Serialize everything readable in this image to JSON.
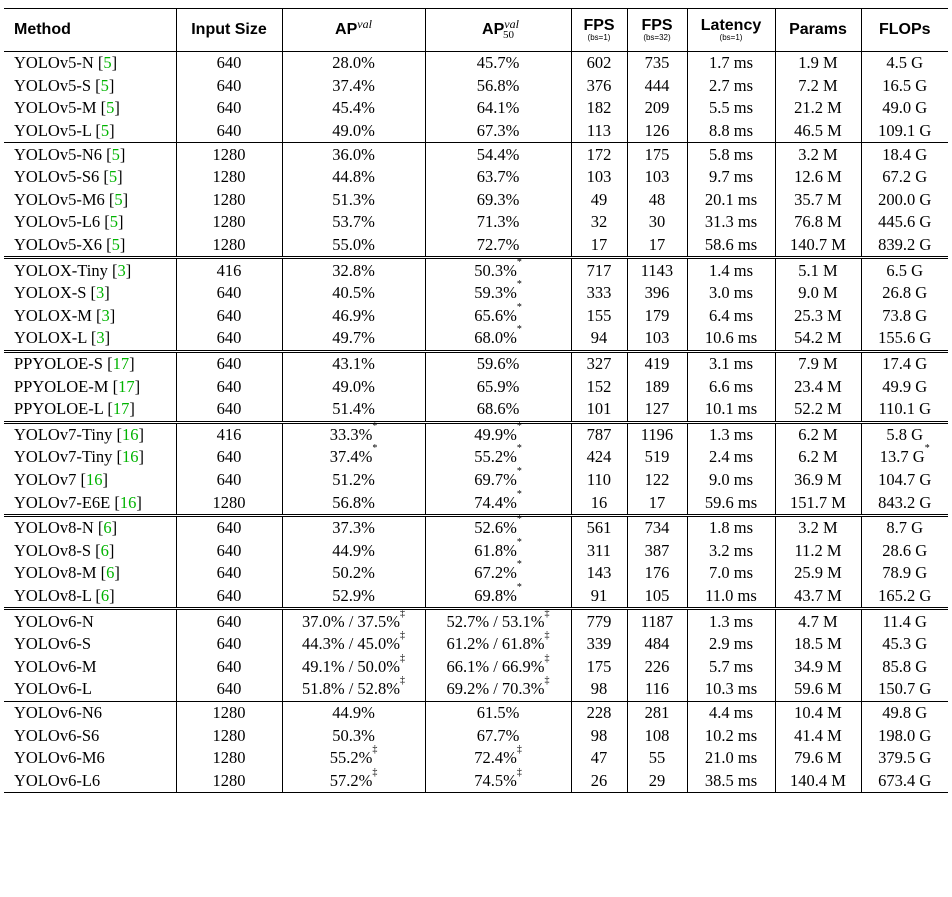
{
  "header": {
    "method": "Method",
    "input_size": "Input Size",
    "ap_val": "AP",
    "ap_val_sup": "val",
    "ap50_val": "AP",
    "ap50_val_sup": "val",
    "ap50_val_sub": "50",
    "fps_bs1": "FPS",
    "fps_bs1_sub": "(bs=1)",
    "fps_bs32": "FPS",
    "fps_bs32_sub": "(bs=32)",
    "latency": "Latency",
    "latency_sub": "(bs=1)",
    "params": "Params",
    "flops": "FLOPs"
  },
  "groups": [
    {
      "style": "grp",
      "rows": [
        {
          "name": "YOLOv5-N",
          "cite": "5",
          "size": "640",
          "ap": "28.0%",
          "ap_mark": "",
          "ap50": "45.7%",
          "ap50_mark": "",
          "fps1": "602",
          "fps32": "735",
          "lat": "1.7 ms",
          "params": "1.9 M",
          "flops": "4.5 G",
          "flops_mark": ""
        },
        {
          "name": "YOLOv5-S",
          "cite": "5",
          "size": "640",
          "ap": "37.4%",
          "ap_mark": "",
          "ap50": "56.8%",
          "ap50_mark": "",
          "fps1": "376",
          "fps32": "444",
          "lat": "2.7 ms",
          "params": "7.2 M",
          "flops": "16.5 G",
          "flops_mark": ""
        },
        {
          "name": "YOLOv5-M",
          "cite": "5",
          "size": "640",
          "ap": "45.4%",
          "ap_mark": "",
          "ap50": "64.1%",
          "ap50_mark": "",
          "fps1": "182",
          "fps32": "209",
          "lat": "5.5 ms",
          "params": "21.2 M",
          "flops": "49.0 G",
          "flops_mark": ""
        },
        {
          "name": "YOLOv5-L",
          "cite": "5",
          "size": "640",
          "ap": "49.0%",
          "ap_mark": "",
          "ap50": "67.3%",
          "ap50_mark": "",
          "fps1": "113",
          "fps32": "126",
          "lat": "8.8 ms",
          "params": "46.5 M",
          "flops": "109.1 G",
          "flops_mark": ""
        }
      ]
    },
    {
      "style": "double",
      "rows": [
        {
          "name": "YOLOv5-N6",
          "cite": "5",
          "size": "1280",
          "ap": "36.0%",
          "ap_mark": "",
          "ap50": "54.4%",
          "ap50_mark": "",
          "fps1": "172",
          "fps32": "175",
          "lat": "5.8 ms",
          "params": "3.2 M",
          "flops": "18.4 G",
          "flops_mark": ""
        },
        {
          "name": "YOLOv5-S6",
          "cite": "5",
          "size": "1280",
          "ap": "44.8%",
          "ap_mark": "",
          "ap50": "63.7%",
          "ap50_mark": "",
          "fps1": "103",
          "fps32": "103",
          "lat": "9.7 ms",
          "params": "12.6 M",
          "flops": "67.2 G",
          "flops_mark": ""
        },
        {
          "name": "YOLOv5-M6",
          "cite": "5",
          "size": "1280",
          "ap": "51.3%",
          "ap_mark": "",
          "ap50": "69.3%",
          "ap50_mark": "",
          "fps1": "49",
          "fps32": "48",
          "lat": "20.1 ms",
          "params": "35.7 M",
          "flops": "200.0 G",
          "flops_mark": ""
        },
        {
          "name": "YOLOv5-L6",
          "cite": "5",
          "size": "1280",
          "ap": "53.7%",
          "ap_mark": "",
          "ap50": "71.3%",
          "ap50_mark": "",
          "fps1": "32",
          "fps32": "30",
          "lat": "31.3 ms",
          "params": "76.8 M",
          "flops": "445.6 G",
          "flops_mark": ""
        },
        {
          "name": "YOLOv5-X6",
          "cite": "5",
          "size": "1280",
          "ap": "55.0%",
          "ap_mark": "",
          "ap50": "72.7%",
          "ap50_mark": "",
          "fps1": "17",
          "fps32": "17",
          "lat": "58.6 ms",
          "params": "140.7 M",
          "flops": "839.2 G",
          "flops_mark": ""
        }
      ]
    },
    {
      "style": "double",
      "rows": [
        {
          "name": "YOLOX-Tiny",
          "cite": "3",
          "size": "416",
          "ap": "32.8%",
          "ap_mark": "",
          "ap50": "50.3%",
          "ap50_mark": "*",
          "fps1": "717",
          "fps32": "1143",
          "lat": "1.4 ms",
          "params": "5.1 M",
          "flops": "6.5 G",
          "flops_mark": ""
        },
        {
          "name": "YOLOX-S",
          "cite": "3",
          "size": "640",
          "ap": "40.5%",
          "ap_mark": "",
          "ap50": "59.3%",
          "ap50_mark": "*",
          "fps1": "333",
          "fps32": "396",
          "lat": "3.0 ms",
          "params": "9.0 M",
          "flops": "26.8 G",
          "flops_mark": ""
        },
        {
          "name": "YOLOX-M",
          "cite": "3",
          "size": "640",
          "ap": "46.9%",
          "ap_mark": "",
          "ap50": "65.6%",
          "ap50_mark": "*",
          "fps1": "155",
          "fps32": "179",
          "lat": "6.4 ms",
          "params": "25.3 M",
          "flops": "73.8 G",
          "flops_mark": ""
        },
        {
          "name": "YOLOX-L",
          "cite": "3",
          "size": "640",
          "ap": "49.7%",
          "ap_mark": "",
          "ap50": "68.0%",
          "ap50_mark": "*",
          "fps1": "94",
          "fps32": "103",
          "lat": "10.6 ms",
          "params": "54.2 M",
          "flops": "155.6 G",
          "flops_mark": ""
        }
      ]
    },
    {
      "style": "double",
      "rows": [
        {
          "name": "PPYOLOE-S",
          "cite": "17",
          "size": "640",
          "ap": "43.1%",
          "ap_mark": "",
          "ap50": "59.6%",
          "ap50_mark": "",
          "fps1": "327",
          "fps32": "419",
          "lat": "3.1 ms",
          "params": "7.9 M",
          "flops": "17.4 G",
          "flops_mark": ""
        },
        {
          "name": "PPYOLOE-M",
          "cite": "17",
          "size": "640",
          "ap": "49.0%",
          "ap_mark": "",
          "ap50": "65.9%",
          "ap50_mark": "",
          "fps1": "152",
          "fps32": "189",
          "lat": "6.6 ms",
          "params": "23.4 M",
          "flops": "49.9 G",
          "flops_mark": ""
        },
        {
          "name": "PPYOLOE-L",
          "cite": "17",
          "size": "640",
          "ap": "51.4%",
          "ap_mark": "",
          "ap50": "68.6%",
          "ap50_mark": "",
          "fps1": "101",
          "fps32": "127",
          "lat": "10.1 ms",
          "params": "52.2 M",
          "flops": "110.1 G",
          "flops_mark": ""
        }
      ]
    },
    {
      "style": "double",
      "rows": [
        {
          "name": "YOLOv7-Tiny",
          "cite": "16",
          "size": "416",
          "ap": "33.3%",
          "ap_mark": "*",
          "ap50": "49.9%",
          "ap50_mark": "*",
          "fps1": "787",
          "fps32": "1196",
          "lat": "1.3 ms",
          "params": "6.2 M",
          "flops": "5.8 G",
          "flops_mark": ""
        },
        {
          "name": "YOLOv7-Tiny",
          "cite": "16",
          "size": "640",
          "ap": "37.4%",
          "ap_mark": "*",
          "ap50": "55.2%",
          "ap50_mark": "*",
          "fps1": "424",
          "fps32": "519",
          "lat": "2.4 ms",
          "params": "6.2 M",
          "flops": "13.7 G",
          "flops_mark": "*"
        },
        {
          "name": "YOLOv7",
          "cite": "16",
          "size": "640",
          "ap": "51.2%",
          "ap_mark": "",
          "ap50": "69.7%",
          "ap50_mark": "*",
          "fps1": "110",
          "fps32": "122",
          "lat": "9.0 ms",
          "params": "36.9 M",
          "flops": "104.7 G",
          "flops_mark": ""
        },
        {
          "name": "YOLOv7-E6E",
          "cite": "16",
          "size": "1280",
          "ap": "56.8%",
          "ap_mark": "",
          "ap50": "74.4%",
          "ap50_mark": "*",
          "fps1": "16",
          "fps32": "17",
          "lat": "59.6 ms",
          "params": "151.7 M",
          "flops": "843.2 G",
          "flops_mark": ""
        }
      ]
    },
    {
      "style": "double",
      "rows": [
        {
          "name": "YOLOv8-N",
          "cite": "6",
          "size": "640",
          "ap": "37.3%",
          "ap_mark": "",
          "ap50": "52.6%",
          "ap50_mark": "*",
          "fps1": "561",
          "fps32": "734",
          "lat": "1.8 ms",
          "params": "3.2 M",
          "flops": "8.7 G",
          "flops_mark": ""
        },
        {
          "name": "YOLOv8-S",
          "cite": "6",
          "size": "640",
          "ap": "44.9%",
          "ap_mark": "",
          "ap50": "61.8%",
          "ap50_mark": "*",
          "fps1": "311",
          "fps32": "387",
          "lat": "3.2 ms",
          "params": "11.2 M",
          "flops": "28.6 G",
          "flops_mark": ""
        },
        {
          "name": "YOLOv8-M",
          "cite": "6",
          "size": "640",
          "ap": "50.2%",
          "ap_mark": "",
          "ap50": "67.2%",
          "ap50_mark": "*",
          "fps1": "143",
          "fps32": "176",
          "lat": "7.0 ms",
          "params": "25.9 M",
          "flops": "78.9 G",
          "flops_mark": ""
        },
        {
          "name": "YOLOv8-L",
          "cite": "6",
          "size": "640",
          "ap": "52.9%",
          "ap_mark": "",
          "ap50": "69.8%",
          "ap50_mark": "*",
          "fps1": "91",
          "fps32": "105",
          "lat": "11.0 ms",
          "params": "43.7 M",
          "flops": "165.2 G",
          "flops_mark": ""
        }
      ]
    },
    {
      "style": "grp",
      "rows": [
        {
          "name": "YOLOv6-N",
          "cite": "",
          "size": "640",
          "ap": "37.0% / 37.5%",
          "ap_mark": "‡",
          "ap50": "52.7% / 53.1%",
          "ap50_mark": "‡",
          "fps1": "779",
          "fps32": "1187",
          "lat": "1.3 ms",
          "params": "4.7 M",
          "flops": "11.4 G",
          "flops_mark": ""
        },
        {
          "name": "YOLOv6-S",
          "cite": "",
          "size": "640",
          "ap": "44.3% / 45.0%",
          "ap_mark": "‡",
          "ap50": "61.2% / 61.8%",
          "ap50_mark": "‡",
          "fps1": "339",
          "fps32": "484",
          "lat": "2.9 ms",
          "params": "18.5 M",
          "flops": "45.3 G",
          "flops_mark": ""
        },
        {
          "name": "YOLOv6-M",
          "cite": "",
          "size": "640",
          "ap": "49.1% / 50.0%",
          "ap_mark": "‡",
          "ap50": "66.1% / 66.9%",
          "ap50_mark": "‡",
          "fps1": "175",
          "fps32": "226",
          "lat": "5.7 ms",
          "params": "34.9 M",
          "flops": "85.8 G",
          "flops_mark": ""
        },
        {
          "name": "YOLOv6-L",
          "cite": "",
          "size": "640",
          "ap": "51.8% / 52.8%",
          "ap_mark": "‡",
          "ap50": "69.2% / 70.3%",
          "ap50_mark": "‡",
          "fps1": "98",
          "fps32": "116",
          "lat": "10.3 ms",
          "params": "59.6 M",
          "flops": "150.7 G",
          "flops_mark": ""
        }
      ]
    },
    {
      "style": "last",
      "rows": [
        {
          "name": "YOLOv6-N6",
          "cite": "",
          "size": "1280",
          "ap": "44.9%",
          "ap_mark": "",
          "ap50": "61.5%",
          "ap50_mark": "",
          "fps1": "228",
          "fps32": "281",
          "lat": "4.4 ms",
          "params": "10.4 M",
          "flops": "49.8 G",
          "flops_mark": ""
        },
        {
          "name": "YOLOv6-S6",
          "cite": "",
          "size": "1280",
          "ap": "50.3%",
          "ap_mark": "",
          "ap50": "67.7%",
          "ap50_mark": "",
          "fps1": "98",
          "fps32": "108",
          "lat": "10.2 ms",
          "params": "41.4 M",
          "flops": "198.0 G",
          "flops_mark": ""
        },
        {
          "name": "YOLOv6-M6",
          "cite": "",
          "size": "1280",
          "ap": "55.2%",
          "ap_mark": "‡",
          "ap50": "72.4%",
          "ap50_mark": "‡",
          "fps1": "47",
          "fps32": "55",
          "lat": "21.0 ms",
          "params": "79.6 M",
          "flops": "379.5 G",
          "flops_mark": ""
        },
        {
          "name": "YOLOv6-L6",
          "cite": "",
          "size": "1280",
          "ap": "57.2%",
          "ap_mark": "‡",
          "ap50": "74.5%",
          "ap50_mark": "‡",
          "fps1": "26",
          "fps32": "29",
          "lat": "38.5 ms",
          "params": "140.4 M",
          "flops": "673.4 G",
          "flops_mark": ""
        }
      ]
    }
  ]
}
